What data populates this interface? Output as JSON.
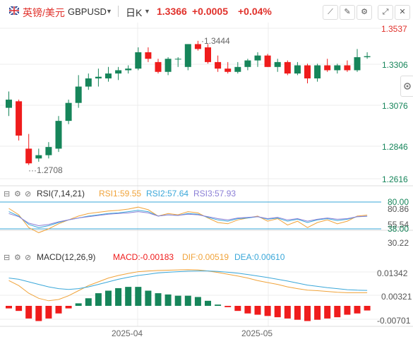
{
  "header": {
    "symbol_cn": "英镑/美元",
    "symbol_en": "GBPUSD",
    "period": "日K",
    "price": "1.3366",
    "change": "+0.0005",
    "change_pct": "+0.04%"
  },
  "colors": {
    "up": "#16855a",
    "down": "#ef1c1c",
    "rsi1": "#f0a33a",
    "rsi2": "#3aa7d9",
    "rsi3": "#8b7fd6",
    "dif": "#f0a33a",
    "dea": "#3aa7d9",
    "grid": "#ececec"
  },
  "icons": [
    "flag-icon",
    "chevron-down-icon",
    "draw-icon",
    "edit-icon",
    "settings-icon",
    "expand-icon",
    "close-icon"
  ],
  "price_axis": [
    "1.3537",
    "1.3306",
    "1.3076",
    "1.2846",
    "1.2616"
  ],
  "price_annotations": {
    "high": "1.3444",
    "low": "1.2708"
  },
  "rsi": {
    "title": "RSI(7,14,21)",
    "rsi1_label": "RSI1:59.55",
    "rsi2_label": "RSI2:57.64",
    "rsi3_label": "RSI3:57.93",
    "axis": [
      "80.00",
      "80.86",
      "55.54",
      "38.00",
      "30.22"
    ]
  },
  "macd": {
    "title": "MACD(12,26,9)",
    "macd_label": "MACD:-0.00183",
    "dif_label": "DIF:0.00519",
    "dea_label": "DEA:0.00610",
    "axis": [
      "0.01342",
      "0.00321",
      "-0.00701"
    ]
  },
  "x_axis": [
    "2025-04",
    "2025-05"
  ],
  "chart_data": [
    {
      "type": "candlestick",
      "title": "GBPUSD",
      "ylim": [
        1.2616,
        1.3537
      ],
      "candles": [
        {
          "o": 1.305,
          "h": 1.315,
          "l": 1.3,
          "c": 1.31
        },
        {
          "o": 1.309,
          "h": 1.31,
          "l": 1.285,
          "c": 1.288
        },
        {
          "o": 1.28,
          "h": 1.289,
          "l": 1.27,
          "c": 1.271
        },
        {
          "o": 1.274,
          "h": 1.28,
          "l": 1.272,
          "c": 1.276
        },
        {
          "o": 1.276,
          "h": 1.284,
          "l": 1.274,
          "c": 1.281
        },
        {
          "o": 1.28,
          "h": 1.3,
          "l": 1.278,
          "c": 1.297
        },
        {
          "o": 1.297,
          "h": 1.31,
          "l": 1.295,
          "c": 1.308
        },
        {
          "o": 1.308,
          "h": 1.325,
          "l": 1.305,
          "c": 1.318
        },
        {
          "o": 1.318,
          "h": 1.326,
          "l": 1.316,
          "c": 1.323
        },
        {
          "o": 1.323,
          "h": 1.329,
          "l": 1.318,
          "c": 1.324
        },
        {
          "o": 1.323,
          "h": 1.33,
          "l": 1.321,
          "c": 1.326
        },
        {
          "o": 1.326,
          "h": 1.33,
          "l": 1.322,
          "c": 1.328
        },
        {
          "o": 1.328,
          "h": 1.331,
          "l": 1.326,
          "c": 1.329
        },
        {
          "o": 1.329,
          "h": 1.342,
          "l": 1.328,
          "c": 1.339
        },
        {
          "o": 1.339,
          "h": 1.342,
          "l": 1.333,
          "c": 1.335
        },
        {
          "o": 1.333,
          "h": 1.335,
          "l": 1.326,
          "c": 1.327
        },
        {
          "o": 1.327,
          "h": 1.336,
          "l": 1.325,
          "c": 1.335
        },
        {
          "o": 1.335,
          "h": 1.336,
          "l": 1.33,
          "c": 1.335
        },
        {
          "o": 1.33,
          "h": 1.344,
          "l": 1.328,
          "c": 1.344
        },
        {
          "o": 1.344,
          "h": 1.346,
          "l": 1.34,
          "c": 1.341
        },
        {
          "o": 1.342,
          "h": 1.344,
          "l": 1.332,
          "c": 1.333
        },
        {
          "o": 1.333,
          "h": 1.337,
          "l": 1.327,
          "c": 1.329
        },
        {
          "o": 1.329,
          "h": 1.333,
          "l": 1.326,
          "c": 1.327
        },
        {
          "o": 1.327,
          "h": 1.333,
          "l": 1.326,
          "c": 1.33
        },
        {
          "o": 1.33,
          "h": 1.335,
          "l": 1.328,
          "c": 1.334
        },
        {
          "o": 1.334,
          "h": 1.339,
          "l": 1.33,
          "c": 1.337
        },
        {
          "o": 1.337,
          "h": 1.338,
          "l": 1.33,
          "c": 1.33
        },
        {
          "o": 1.33,
          "h": 1.335,
          "l": 1.327,
          "c": 1.333
        },
        {
          "o": 1.333,
          "h": 1.334,
          "l": 1.325,
          "c": 1.326
        },
        {
          "o": 1.326,
          "h": 1.333,
          "l": 1.325,
          "c": 1.331
        },
        {
          "o": 1.331,
          "h": 1.332,
          "l": 1.32,
          "c": 1.323
        },
        {
          "o": 1.323,
          "h": 1.332,
          "l": 1.321,
          "c": 1.331
        },
        {
          "o": 1.331,
          "h": 1.335,
          "l": 1.327,
          "c": 1.328
        },
        {
          "o": 1.328,
          "h": 1.332,
          "l": 1.326,
          "c": 1.331
        },
        {
          "o": 1.331,
          "h": 1.334,
          "l": 1.327,
          "c": 1.328
        },
        {
          "o": 1.328,
          "h": 1.341,
          "l": 1.327,
          "c": 1.336
        },
        {
          "o": 1.336,
          "h": 1.339,
          "l": 1.335,
          "c": 1.3366
        }
      ]
    },
    {
      "type": "line",
      "title": "RSI(7,14,21)",
      "ylim": [
        20,
        90
      ],
      "series": [
        {
          "name": "RSI1",
          "values": [
            70,
            60,
            40,
            32,
            38,
            46,
            52,
            58,
            62,
            64,
            66,
            67,
            69,
            72,
            68,
            58,
            62,
            60,
            65,
            63,
            55,
            48,
            46,
            52,
            55,
            58,
            50,
            54,
            44,
            50,
            40,
            48,
            52,
            46,
            50,
            58,
            59.55
          ]
        },
        {
          "name": "RSI2",
          "values": [
            65,
            58,
            45,
            40,
            43,
            48,
            52,
            55,
            58,
            60,
            62,
            63,
            65,
            67,
            65,
            58,
            60,
            59,
            62,
            61,
            56,
            52,
            50,
            54,
            55,
            57,
            53,
            55,
            50,
            53,
            48,
            52,
            54,
            51,
            53,
            57,
            57.64
          ]
        },
        {
          "name": "RSI3",
          "values": [
            62,
            57,
            47,
            43,
            45,
            49,
            52,
            55,
            57,
            59,
            61,
            62,
            63,
            65,
            63,
            58,
            60,
            59,
            61,
            60,
            57,
            54,
            52,
            55,
            56,
            57,
            54,
            56,
            52,
            54,
            50,
            53,
            55,
            53,
            54,
            57,
            57.93
          ]
        }
      ]
    },
    {
      "type": "bar+line",
      "title": "MACD(12,26,9)",
      "ylim": [
        -0.009,
        0.016
      ],
      "series": [
        {
          "name": "MACD",
          "values": [
            -0.001,
            -0.002,
            -0.005,
            -0.006,
            -0.005,
            -0.003,
            -0.001,
            0.001,
            0.003,
            0.005,
            0.006,
            0.007,
            0.0075,
            0.0075,
            0.006,
            0.005,
            0.0045,
            0.004,
            0.004,
            0.0035,
            0.002,
            0.0005,
            -0.0005,
            -0.002,
            -0.003,
            -0.0035,
            -0.004,
            -0.0045,
            -0.005,
            -0.0055,
            -0.006,
            -0.0055,
            -0.005,
            -0.0045,
            -0.0035,
            -0.003,
            -0.00183
          ]
        },
        {
          "name": "DIF",
          "values": [
            0.01,
            0.008,
            0.005,
            0.003,
            0.002,
            0.0025,
            0.004,
            0.006,
            0.008,
            0.0095,
            0.011,
            0.012,
            0.0128,
            0.0135,
            0.0138,
            0.014,
            0.0141,
            0.0142,
            0.0143,
            0.0142,
            0.0138,
            0.0132,
            0.0125,
            0.0118,
            0.011,
            0.01,
            0.0092,
            0.0085,
            0.0075,
            0.0068,
            0.0062,
            0.006,
            0.0057,
            0.0054,
            0.0052,
            0.0052,
            0.00519
          ]
        },
        {
          "name": "DEA",
          "values": [
            0.011,
            0.0105,
            0.0095,
            0.0085,
            0.0075,
            0.0068,
            0.0065,
            0.0068,
            0.0075,
            0.0085,
            0.0095,
            0.0105,
            0.0113,
            0.012,
            0.0125,
            0.013,
            0.0133,
            0.0135,
            0.0137,
            0.0138,
            0.0138,
            0.0136,
            0.0133,
            0.0129,
            0.0124,
            0.0118,
            0.0112,
            0.0105,
            0.0098,
            0.009,
            0.0082,
            0.0077,
            0.0072,
            0.0068,
            0.0064,
            0.0062,
            0.0061
          ]
        }
      ]
    }
  ]
}
